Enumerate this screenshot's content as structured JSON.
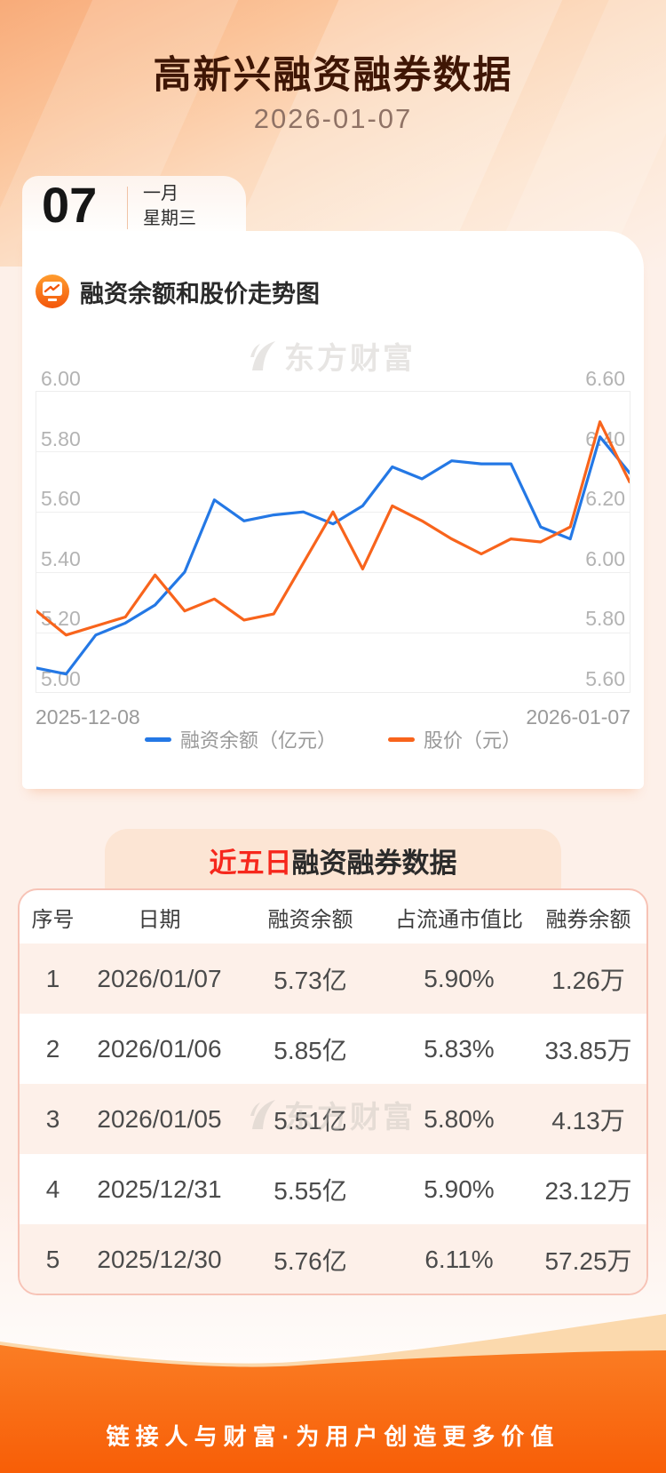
{
  "header": {
    "title": "高新兴融资融券数据",
    "date": "2026-01-07"
  },
  "date_card": {
    "day": "07",
    "month": "一月",
    "weekday": "星期三"
  },
  "chart_section": {
    "title": "融资余额和股价走势图",
    "icon": "chart-monitor-icon",
    "watermark": "东方财富"
  },
  "chart_data": {
    "type": "line",
    "title": "融资余额和股价走势图",
    "x_labels_visible": [
      "2025-12-08",
      "2026-01-07"
    ],
    "points_count": 21,
    "series": [
      {
        "name": "融资余额（亿元）",
        "axis": "left",
        "color": "#2478e5",
        "values": [
          5.08,
          5.06,
          5.19,
          5.23,
          5.29,
          5.4,
          5.64,
          5.57,
          5.59,
          5.6,
          5.56,
          5.62,
          5.75,
          5.71,
          5.77,
          5.76,
          5.76,
          5.55,
          5.51,
          5.85,
          5.73
        ]
      },
      {
        "name": "股价（元）",
        "axis": "right",
        "color": "#f8641c",
        "values": [
          5.87,
          5.79,
          5.82,
          5.85,
          5.99,
          5.87,
          5.91,
          5.84,
          5.86,
          6.03,
          6.2,
          6.01,
          6.22,
          6.17,
          6.11,
          6.06,
          6.11,
          6.1,
          6.15,
          6.5,
          6.3
        ]
      }
    ],
    "left_axis": {
      "ticks": [
        "6.00",
        "5.80",
        "5.60",
        "5.40",
        "5.20",
        "5.00"
      ],
      "range": [
        5.0,
        6.0
      ]
    },
    "right_axis": {
      "ticks": [
        "6.60",
        "6.40",
        "6.20",
        "6.00",
        "5.80",
        "5.60"
      ],
      "range": [
        5.6,
        6.6
      ]
    },
    "grid": true,
    "legend_position": "bottom"
  },
  "table_section": {
    "title_highlight": "近五日",
    "title_rest": "融资融券数据",
    "watermark": "东方财富",
    "columns": [
      "序号",
      "日期",
      "融资余额",
      "占流通市值比",
      "融券余额"
    ],
    "rows": [
      [
        "1",
        "2026/01/07",
        "5.73亿",
        "5.90%",
        "1.26万"
      ],
      [
        "2",
        "2026/01/06",
        "5.85亿",
        "5.83%",
        "33.85万"
      ],
      [
        "3",
        "2026/01/05",
        "5.51亿",
        "5.80%",
        "4.13万"
      ],
      [
        "4",
        "2025/12/31",
        "5.55亿",
        "5.90%",
        "23.12万"
      ],
      [
        "5",
        "2025/12/30",
        "5.76亿",
        "6.11%",
        "57.25万"
      ]
    ]
  },
  "footer": {
    "slogan": "链接人与财富·为用户创造更多价值"
  },
  "colors": {
    "accent_orange": "#f8641c",
    "series_blue": "#2478e5",
    "title_brown": "#3f1605",
    "highlight_red": "#f6271c",
    "page_bg": "#fdf0e9",
    "stripe_bg": "#fdf0e9",
    "banner_bg": "#fce5d4",
    "card_border": "#f7c3b6",
    "footer_orange": "#f96408"
  }
}
